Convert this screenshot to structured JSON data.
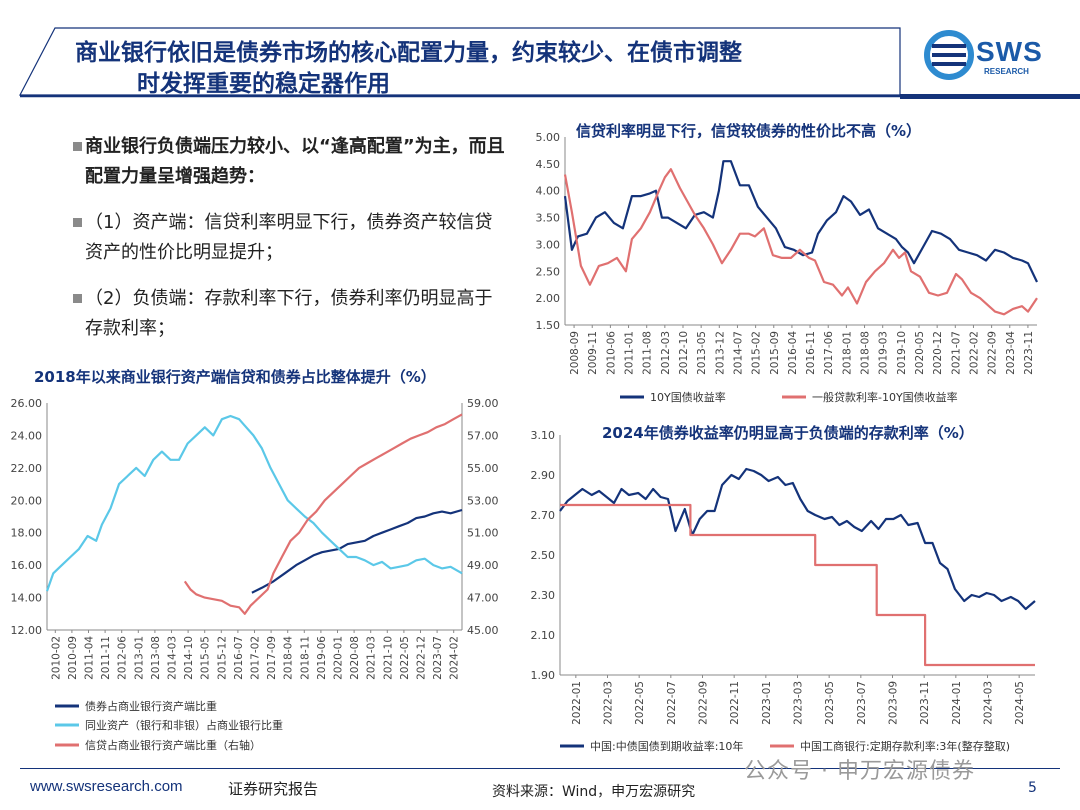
{
  "page": {
    "title_line1": "商业银行依旧是债券市场的核心配置力量，约束较少、在债市调整",
    "title_line2": "时发挥重要的稳定器作用",
    "logo_text": "SWS",
    "logo_sub": "RESEARCH",
    "brand_color": "#14337a",
    "accent_color": "#2e8bd0"
  },
  "bullets": [
    {
      "text": "商业银行负债端压力较小、以“逢高配置”为主，而且配置力量呈增强趋势：",
      "bold": true
    },
    {
      "text": "（1）资产端：信贷利率明显下行，债券资产较信贷资产的性价比明显提升；",
      "bold": false
    },
    {
      "text": "（2）负债端：存款利率下行，债券利率仍明显高于存款利率；",
      "bold": false
    }
  ],
  "footer": {
    "website": "www.swsresearch.com",
    "report_type": "证券研究报告",
    "source": "资料来源：Wind，申万宏源研究",
    "watermark": "公众号 · 申万宏源债券",
    "page_number": "5"
  },
  "chart_data": [
    {
      "id": "loan-vs-bond",
      "type": "line",
      "title": "信贷利率明显下行，信贷较债券的性价比不高（%）",
      "ylim": [
        1.5,
        5.0
      ],
      "yticks": [
        "1.50",
        "2.00",
        "2.50",
        "3.00",
        "3.50",
        "4.00",
        "4.50",
        "5.00"
      ],
      "x_tick_labels": [
        "2008-09",
        "2009-11",
        "2010-06",
        "2011-01",
        "2011-08",
        "2012-03",
        "2012-10",
        "2013-05",
        "2013-12",
        "2014-07",
        "2015-02",
        "2015-09",
        "2016-04",
        "2016-11",
        "2017-06",
        "2018-01",
        "2018-08",
        "2019-03",
        "2019-10",
        "2020-05",
        "2020-12",
        "2021-07",
        "2022-02",
        "2022-09",
        "2023-04",
        "2023-11"
      ],
      "x_range": [
        2008.67,
        2024.4
      ],
      "series": [
        {
          "name": "10Y国债收益率",
          "color": "#14337a",
          "x": [
            2008.67,
            2008.9,
            2009.1,
            2009.4,
            2009.7,
            2010.0,
            2010.3,
            2010.6,
            2010.9,
            2011.2,
            2011.5,
            2011.7,
            2011.9,
            2012.1,
            2012.4,
            2012.7,
            2013.0,
            2013.3,
            2013.6,
            2013.8,
            2013.95,
            2014.2,
            2014.5,
            2014.8,
            2015.1,
            2015.4,
            2015.7,
            2016.0,
            2016.3,
            2016.6,
            2016.9,
            2017.1,
            2017.4,
            2017.7,
            2017.95,
            2018.2,
            2018.5,
            2018.8,
            2019.1,
            2019.4,
            2019.7,
            2019.9,
            2020.1,
            2020.3,
            2020.6,
            2020.9,
            2021.2,
            2021.5,
            2021.8,
            2022.1,
            2022.4,
            2022.7,
            2023.0,
            2023.3,
            2023.6,
            2023.9,
            2024.1,
            2024.4
          ],
          "y": [
            3.9,
            2.9,
            3.15,
            3.2,
            3.5,
            3.6,
            3.4,
            3.3,
            3.9,
            3.9,
            3.95,
            4.0,
            3.5,
            3.5,
            3.4,
            3.3,
            3.55,
            3.6,
            3.5,
            4.0,
            4.55,
            4.55,
            4.1,
            4.1,
            3.7,
            3.5,
            3.3,
            2.95,
            2.9,
            2.8,
            2.85,
            3.2,
            3.45,
            3.6,
            3.9,
            3.8,
            3.55,
            3.65,
            3.3,
            3.2,
            3.1,
            2.95,
            2.85,
            2.65,
            2.95,
            3.25,
            3.2,
            3.1,
            2.9,
            2.85,
            2.8,
            2.7,
            2.9,
            2.85,
            2.75,
            2.7,
            2.65,
            2.3
          ]
        },
        {
          "name": "一般贷款利率-10Y国债收益率",
          "color": "#e07070",
          "x": [
            2008.67,
            2008.9,
            2009.2,
            2009.5,
            2009.8,
            2010.1,
            2010.4,
            2010.7,
            2010.9,
            2011.2,
            2011.5,
            2011.8,
            2012.0,
            2012.2,
            2012.5,
            2012.8,
            2013.0,
            2013.3,
            2013.6,
            2013.9,
            2014.2,
            2014.5,
            2014.8,
            2015.0,
            2015.3,
            2015.6,
            2015.9,
            2016.2,
            2016.5,
            2016.8,
            2017.0,
            2017.3,
            2017.6,
            2017.9,
            2018.1,
            2018.4,
            2018.7,
            2019.0,
            2019.3,
            2019.6,
            2019.8,
            2020.0,
            2020.2,
            2020.5,
            2020.8,
            2021.1,
            2021.4,
            2021.7,
            2021.9,
            2022.2,
            2022.5,
            2022.8,
            2023.0,
            2023.3,
            2023.6,
            2023.9,
            2024.1,
            2024.4
          ],
          "y": [
            4.3,
            3.6,
            2.6,
            2.25,
            2.6,
            2.65,
            2.75,
            2.5,
            3.1,
            3.3,
            3.6,
            4.0,
            4.25,
            4.4,
            4.05,
            3.75,
            3.55,
            3.3,
            3.0,
            2.65,
            2.9,
            3.2,
            3.2,
            3.15,
            3.3,
            2.8,
            2.75,
            2.75,
            2.9,
            2.75,
            2.7,
            2.3,
            2.25,
            2.05,
            2.2,
            1.9,
            2.3,
            2.5,
            2.65,
            2.9,
            2.75,
            2.85,
            2.5,
            2.4,
            2.1,
            2.05,
            2.1,
            2.45,
            2.35,
            2.1,
            2.0,
            1.85,
            1.75,
            1.7,
            1.8,
            1.85,
            1.75,
            2.0
          ]
        }
      ]
    },
    {
      "id": "bank-asset-share",
      "type": "line",
      "title": "2018年以来商业银行资产端信贷和债券占比整体提升（%）",
      "ylim": [
        12.0,
        26.0
      ],
      "y2lim": [
        45.0,
        59.0
      ],
      "yticks": [
        "12.00",
        "14.00",
        "16.00",
        "18.00",
        "20.00",
        "22.00",
        "24.00",
        "26.00"
      ],
      "y2ticks": [
        "45.00",
        "47.00",
        "49.00",
        "51.00",
        "53.00",
        "55.00",
        "57.00",
        "59.00"
      ],
      "x_tick_labels": [
        "2010-02",
        "2010-09",
        "2011-04",
        "2011-11",
        "2012-06",
        "2013-01",
        "2013-08",
        "2014-03",
        "2014-10",
        "2015-05",
        "2015-12",
        "2016-07",
        "2017-02",
        "2017-09",
        "2018-04",
        "2018-11",
        "2019-06",
        "2020-01",
        "2020-08",
        "2021-03",
        "2021-10",
        "2022-05",
        "2022-12",
        "2023-07",
        "2024-02"
      ],
      "x_range": [
        2010.08,
        2024.6
      ],
      "series": [
        {
          "name": "债券占商业银行资产端比重",
          "color": "#14337a",
          "axis": "left",
          "x": [
            2017.25,
            2017.6,
            2018.0,
            2018.4,
            2018.8,
            2019.1,
            2019.4,
            2019.7,
            2020.0,
            2020.3,
            2020.6,
            2020.9,
            2021.2,
            2021.5,
            2021.8,
            2022.1,
            2022.4,
            2022.7,
            2023.0,
            2023.3,
            2023.6,
            2023.9,
            2024.2,
            2024.6
          ],
          "y": [
            14.3,
            14.6,
            15.0,
            15.5,
            16.0,
            16.3,
            16.6,
            16.8,
            16.9,
            17.0,
            17.3,
            17.4,
            17.5,
            17.8,
            18.0,
            18.2,
            18.4,
            18.6,
            18.9,
            19.0,
            19.2,
            19.3,
            19.2,
            19.4
          ]
        },
        {
          "name": "同业资产（银行和非银）占商业银行比重",
          "color": "#5bc8e8",
          "axis": "left",
          "x": [
            2010.08,
            2010.3,
            2010.6,
            2010.9,
            2011.2,
            2011.5,
            2011.8,
            2012.0,
            2012.3,
            2012.6,
            2012.9,
            2013.2,
            2013.5,
            2013.8,
            2014.1,
            2014.4,
            2014.7,
            2015.0,
            2015.3,
            2015.6,
            2015.9,
            2016.2,
            2016.5,
            2016.8,
            2017.0,
            2017.3,
            2017.6,
            2017.9,
            2018.2,
            2018.5,
            2018.8,
            2019.1,
            2019.4,
            2019.7,
            2020.0,
            2020.3,
            2020.6,
            2020.9,
            2021.2,
            2021.5,
            2021.8,
            2022.1,
            2022.4,
            2022.7,
            2023.0,
            2023.3,
            2023.6,
            2023.9,
            2024.2,
            2024.6
          ],
          "y": [
            14.4,
            15.5,
            16.0,
            16.5,
            17.0,
            17.8,
            17.5,
            18.5,
            19.5,
            21.0,
            21.5,
            22.0,
            21.5,
            22.5,
            23.0,
            22.5,
            22.5,
            23.5,
            24.0,
            24.5,
            24.0,
            25.0,
            25.2,
            25.0,
            24.6,
            24.0,
            23.2,
            22.0,
            21.0,
            20.0,
            19.5,
            19.0,
            18.6,
            18.0,
            17.5,
            17.0,
            16.5,
            16.5,
            16.3,
            16.0,
            16.2,
            15.8,
            15.9,
            16.0,
            16.3,
            16.4,
            16.0,
            15.8,
            15.9,
            15.5
          ]
        },
        {
          "name": "信贷占商业银行资产端比重（右轴）",
          "color": "#e07070",
          "axis": "right",
          "x": [
            2014.9,
            2015.1,
            2015.3,
            2015.6,
            2015.9,
            2016.2,
            2016.5,
            2016.8,
            2017.0,
            2017.2,
            2017.5,
            2017.8,
            2018.0,
            2018.3,
            2018.6,
            2018.9,
            2019.2,
            2019.5,
            2019.8,
            2020.1,
            2020.4,
            2020.7,
            2021.0,
            2021.3,
            2021.6,
            2021.9,
            2022.2,
            2022.5,
            2022.8,
            2023.1,
            2023.4,
            2023.7,
            2024.0,
            2024.3,
            2024.6
          ],
          "y": [
            48.0,
            47.5,
            47.2,
            47.0,
            46.9,
            46.8,
            46.5,
            46.4,
            46.0,
            46.5,
            47.0,
            47.5,
            48.5,
            49.5,
            50.5,
            51.0,
            51.8,
            52.3,
            53.0,
            53.5,
            54.0,
            54.5,
            55.0,
            55.3,
            55.6,
            55.9,
            56.2,
            56.5,
            56.8,
            57.0,
            57.2,
            57.5,
            57.7,
            58.0,
            58.3
          ]
        }
      ]
    },
    {
      "id": "bond-vs-deposit",
      "type": "line",
      "title": "2024年债券收益率仍明显高于负债端的存款利率（%）",
      "ylim": [
        1.9,
        3.1
      ],
      "yticks": [
        "1.90",
        "2.10",
        "2.30",
        "2.50",
        "2.70",
        "2.90",
        "3.10"
      ],
      "x_tick_labels": [
        "2022-01",
        "2022-03",
        "2022-05",
        "2022-07",
        "2022-09",
        "2022-11",
        "2023-01",
        "2023-03",
        "2023-05",
        "2023-07",
        "2023-09",
        "2023-11",
        "2024-01",
        "2024-03",
        "2024-05"
      ],
      "x_range": [
        2022.0,
        2024.55
      ],
      "series": [
        {
          "name": "中国:中债国债到期收益率:10年",
          "color": "#14337a",
          "x": [
            2022.0,
            2022.04,
            2022.08,
            2022.12,
            2022.17,
            2022.21,
            2022.25,
            2022.29,
            2022.33,
            2022.37,
            2022.42,
            2022.46,
            2022.5,
            2022.54,
            2022.58,
            2022.62,
            2022.67,
            2022.71,
            2022.75,
            2022.79,
            2022.83,
            2022.87,
            2022.92,
            2022.96,
            2023.0,
            2023.04,
            2023.08,
            2023.12,
            2023.17,
            2023.21,
            2023.25,
            2023.29,
            2023.33,
            2023.37,
            2023.42,
            2023.46,
            2023.5,
            2023.54,
            2023.58,
            2023.62,
            2023.67,
            2023.71,
            2023.75,
            2023.79,
            2023.83,
            2023.87,
            2023.92,
            2023.96,
            2024.0,
            2024.04,
            2024.08,
            2024.12,
            2024.17,
            2024.21,
            2024.25,
            2024.29,
            2024.33,
            2024.37,
            2024.42,
            2024.46,
            2024.5,
            2024.55
          ],
          "y": [
            2.72,
            2.77,
            2.8,
            2.83,
            2.8,
            2.82,
            2.79,
            2.76,
            2.83,
            2.8,
            2.81,
            2.78,
            2.83,
            2.79,
            2.78,
            2.62,
            2.73,
            2.6,
            2.68,
            2.72,
            2.72,
            2.85,
            2.9,
            2.88,
            2.93,
            2.92,
            2.9,
            2.87,
            2.89,
            2.85,
            2.86,
            2.78,
            2.72,
            2.7,
            2.68,
            2.69,
            2.65,
            2.67,
            2.64,
            2.62,
            2.67,
            2.63,
            2.68,
            2.68,
            2.7,
            2.65,
            2.66,
            2.56,
            2.56,
            2.46,
            2.43,
            2.33,
            2.27,
            2.3,
            2.29,
            2.31,
            2.3,
            2.27,
            2.29,
            2.27,
            2.23,
            2.27
          ]
        },
        {
          "name": "中国工商银行:定期存款利率:3年(整存整取)",
          "color": "#e07070",
          "x": [
            2022.0,
            2022.7,
            2022.7,
            2023.37,
            2023.37,
            2023.7,
            2023.7,
            2023.96,
            2023.96,
            2024.55
          ],
          "y": [
            2.75,
            2.75,
            2.6,
            2.6,
            2.45,
            2.45,
            2.2,
            2.2,
            1.95,
            1.95
          ]
        }
      ]
    }
  ]
}
